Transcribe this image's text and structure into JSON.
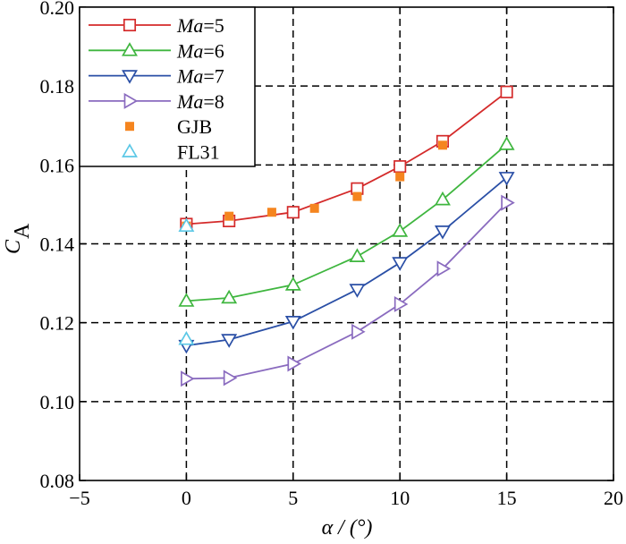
{
  "chart_data": {
    "type": "line",
    "title": "",
    "xlabel": "α / (°)",
    "ylabel": {
      "main": "C",
      "sub": "A"
    },
    "xlim": [
      -5,
      20
    ],
    "ylim": [
      0.08,
      0.2
    ],
    "xticks": [
      -5,
      0,
      5,
      10,
      15,
      20
    ],
    "yticks": [
      0.08,
      0.1,
      0.12,
      0.14,
      0.16,
      0.18,
      0.2
    ],
    "xtick_labels": [
      "−5",
      "0",
      "5",
      "10",
      "15",
      "20"
    ],
    "ytick_labels": [
      "0.08",
      "0.10",
      "0.12",
      "0.14",
      "0.16",
      "0.18",
      "0.20"
    ],
    "grid": true,
    "legend_position": "top-left",
    "series": [
      {
        "name": "Ma=5",
        "name_italic": "Ma",
        "name_rest": "=5",
        "color": "#d42a2a",
        "marker": "square",
        "line": true,
        "x": [
          0,
          2,
          5,
          8,
          10,
          12,
          15
        ],
        "y": [
          0.145,
          0.1458,
          0.148,
          0.154,
          0.1596,
          0.166,
          0.1785
        ]
      },
      {
        "name": "Ma=6",
        "name_italic": "Ma",
        "name_rest": "=6",
        "color": "#3fb63f",
        "marker": "triangle-up",
        "line": true,
        "x": [
          0,
          2,
          5,
          8,
          10,
          12,
          15
        ],
        "y": [
          0.1255,
          0.1263,
          0.1296,
          0.1368,
          0.1432,
          0.1512,
          0.1652
        ]
      },
      {
        "name": "Ma=7",
        "name_italic": "Ma",
        "name_rest": "=7",
        "color": "#2a4fa6",
        "marker": "triangle-down",
        "line": true,
        "x": [
          0,
          2,
          5,
          8,
          10,
          12,
          15
        ],
        "y": [
          0.1142,
          0.1157,
          0.1203,
          0.1284,
          0.1352,
          0.1432,
          0.1568
        ]
      },
      {
        "name": "Ma=8",
        "name_italic": "Ma",
        "name_rest": "=8",
        "color": "#8a6bbf",
        "marker": "triangle-right",
        "line": true,
        "x": [
          0,
          2,
          5,
          8,
          10,
          12,
          15
        ],
        "y": [
          0.1058,
          0.106,
          0.1096,
          0.1177,
          0.1247,
          0.1337,
          0.1504
        ]
      },
      {
        "name": "GJB",
        "name_italic": "",
        "name_rest": "GJB",
        "color": "#f5851f",
        "marker": "filled-square",
        "line": false,
        "x": [
          0,
          2,
          4,
          6,
          8,
          10,
          12
        ],
        "y": [
          0.1445,
          0.147,
          0.148,
          0.149,
          0.152,
          0.157,
          0.165
        ]
      },
      {
        "name": "FL31",
        "name_italic": "",
        "name_rest": "FL31",
        "color": "#5bc8e6",
        "marker": "triangle-up",
        "line": false,
        "x": [
          0,
          0
        ],
        "y": [
          0.1445,
          0.1158
        ]
      }
    ]
  }
}
